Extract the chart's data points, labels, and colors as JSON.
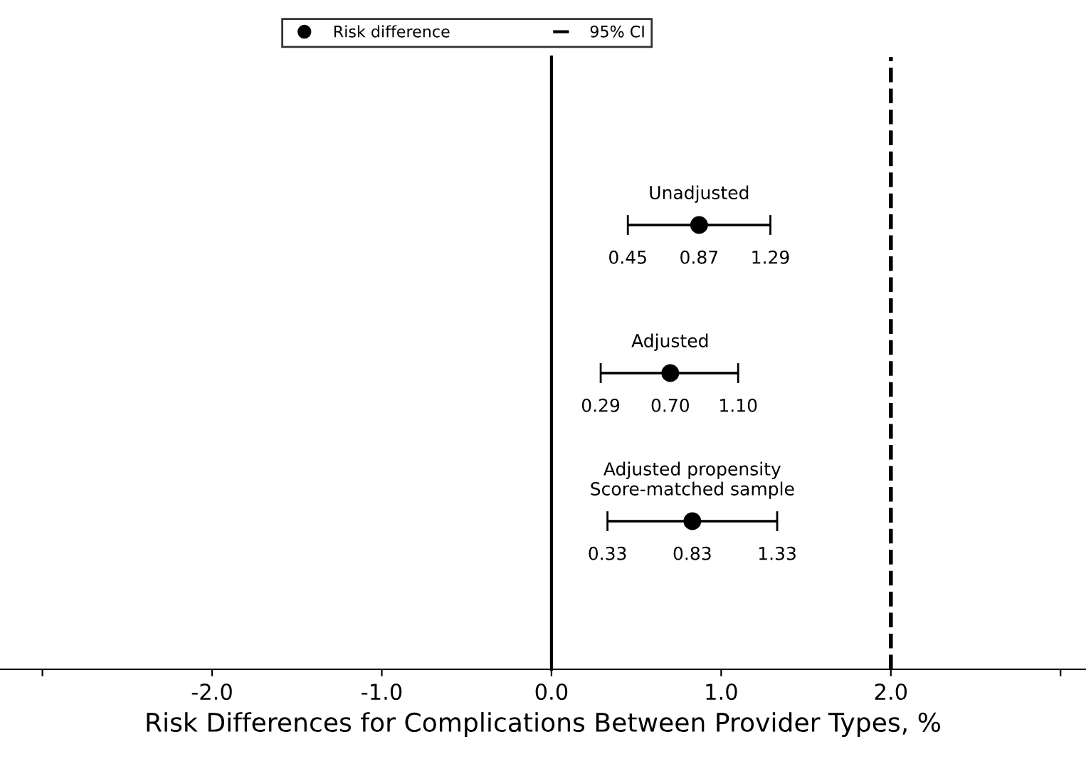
{
  "chart_data": {
    "type": "scatter",
    "orientation": "horizontal",
    "xlabel": "Risk Differences for Complications Between Provider Types, %",
    "categories": [
      "Unadjusted",
      "Adjusted",
      "Adjusted propensity\nScore-matched sample"
    ],
    "series": [
      {
        "name": "Risk difference",
        "color": "#000000",
        "values": [
          0.87,
          0.7,
          0.83
        ],
        "errors": [
          [
            0.45,
            1.29
          ],
          [
            0.29,
            1.1
          ],
          [
            0.33,
            1.33
          ]
        ]
      }
    ],
    "value_labels": [
      "0.87",
      "0.70",
      "0.83"
    ],
    "annotations": [
      "95% CI",
      "0.45",
      "1.29",
      "0.29",
      "1.10",
      "0.33",
      "1.33"
    ],
    "xlim": [
      -3.25,
      3.15
    ],
    "xticks": [
      {
        "value": -3,
        "label": null
      },
      {
        "value": -2,
        "label": "-2.0"
      },
      {
        "value": -1,
        "label": "-1.0"
      },
      {
        "value": 0,
        "label": "0.0"
      },
      {
        "value": 1,
        "label": "1.0"
      },
      {
        "value": 2,
        "label": "2.0"
      },
      {
        "value": 3,
        "label": null
      }
    ],
    "ref_lines": [
      {
        "axis": "x",
        "value": 0,
        "color": "#000000",
        "line_style": "solid"
      },
      {
        "axis": "x",
        "value": 2,
        "color": "#000000",
        "line_style": "dashed"
      }
    ],
    "marker": "circle",
    "legend": "top",
    "grid": false,
    "tick_labels": "x"
  }
}
